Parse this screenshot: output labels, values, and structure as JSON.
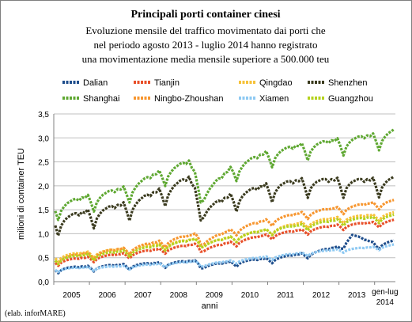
{
  "chart_data": {
    "type": "line",
    "title": "Principali porti container cinesi",
    "subtitle": [
      "Evoluzione mensile del traffico movimentato dai porti che",
      "nel periodo agosto 2013 - luglio 2014 hanno registrato",
      "una movimentazione media mensile superiore a 500.000 teu"
    ],
    "ylabel": "milioni di container TEU",
    "xlabel": "anni",
    "ylim": [
      0,
      3.5
    ],
    "yticks": [
      "0,0",
      "0,5",
      "1,0",
      "1,5",
      "2,0",
      "2,5",
      "3,0",
      "3,5"
    ],
    "xticks": [
      "2005",
      "2006",
      "2007",
      "2008",
      "2009",
      "2010",
      "2011",
      "2012",
      "2013"
    ],
    "xtick_last": [
      "gen-lug",
      "2014"
    ],
    "x_start": "2005-01",
    "x_end": "2014-07",
    "grid": true,
    "legend_position": "top",
    "credit": "(elab. inforMARE)",
    "series": [
      {
        "name": "Dalian",
        "color": "#1f4e8c",
        "dash": "dashed",
        "start": 0.25,
        "end": 0.8,
        "seasonal": 0.06,
        "keypoints": [
          [
            0,
            0.25
          ],
          [
            24,
            0.32
          ],
          [
            48,
            0.4
          ],
          [
            50,
            0.3
          ],
          [
            60,
            0.38
          ],
          [
            72,
            0.45
          ],
          [
            84,
            0.55
          ],
          [
            96,
            0.7
          ],
          [
            100,
            0.95
          ],
          [
            108,
            0.75
          ],
          [
            114,
            0.82
          ]
        ]
      },
      {
        "name": "Tianjin",
        "color": "#e8502a",
        "dash": "dashed",
        "start": 0.4,
        "end": 1.25,
        "seasonal": 0.06,
        "keypoints": [
          [
            0,
            0.4
          ],
          [
            24,
            0.55
          ],
          [
            48,
            0.75
          ],
          [
            50,
            0.65
          ],
          [
            60,
            0.8
          ],
          [
            72,
            0.95
          ],
          [
            84,
            1.05
          ],
          [
            96,
            1.15
          ],
          [
            108,
            1.2
          ],
          [
            114,
            1.25
          ]
        ]
      },
      {
        "name": "Qingdao",
        "color": "#f6c23a",
        "dash": "dashed",
        "start": 0.5,
        "end": 1.4,
        "seasonal": 0.07,
        "keypoints": [
          [
            0,
            0.5
          ],
          [
            24,
            0.65
          ],
          [
            48,
            0.85
          ],
          [
            50,
            0.75
          ],
          [
            60,
            0.9
          ],
          [
            72,
            1.05
          ],
          [
            84,
            1.2
          ],
          [
            96,
            1.3
          ],
          [
            108,
            1.35
          ],
          [
            114,
            1.4
          ]
        ]
      },
      {
        "name": "Shenzhen",
        "color": "#3b3b1f",
        "dash": "dashed",
        "start": 1.2,
        "end": 2.05,
        "seasonal": 0.2,
        "keypoints": [
          [
            0,
            1.2
          ],
          [
            24,
            1.5
          ],
          [
            36,
            1.8
          ],
          [
            45,
            2.05
          ],
          [
            50,
            1.4
          ],
          [
            60,
            1.7
          ],
          [
            72,
            1.9
          ],
          [
            84,
            2.0
          ],
          [
            96,
            2.0
          ],
          [
            108,
            2.0
          ],
          [
            114,
            2.05
          ]
        ]
      },
      {
        "name": "Shanghai",
        "color": "#5fa832",
        "dash": "dashed",
        "start": 1.5,
        "end": 3.05,
        "seasonal": 0.18,
        "keypoints": [
          [
            0,
            1.5
          ],
          [
            24,
            1.85
          ],
          [
            36,
            2.2
          ],
          [
            45,
            2.4
          ],
          [
            50,
            1.75
          ],
          [
            60,
            2.3
          ],
          [
            72,
            2.6
          ],
          [
            84,
            2.75
          ],
          [
            96,
            2.85
          ],
          [
            108,
            2.95
          ],
          [
            114,
            3.05
          ]
        ]
      },
      {
        "name": "Ningbo-Zhoushan",
        "color": "#f7962f",
        "dash": "dashed",
        "start": 0.45,
        "end": 1.65,
        "seasonal": 0.08,
        "keypoints": [
          [
            0,
            0.45
          ],
          [
            24,
            0.65
          ],
          [
            48,
            0.95
          ],
          [
            50,
            0.8
          ],
          [
            60,
            1.05
          ],
          [
            72,
            1.25
          ],
          [
            84,
            1.4
          ],
          [
            96,
            1.5
          ],
          [
            108,
            1.6
          ],
          [
            114,
            1.65
          ]
        ]
      },
      {
        "name": "Xiamen",
        "color": "#8ec9f2",
        "dash": "dashed",
        "start": 0.25,
        "end": 0.75,
        "seasonal": 0.04,
        "keypoints": [
          [
            0,
            0.25
          ],
          [
            24,
            0.3
          ],
          [
            48,
            0.4
          ],
          [
            50,
            0.33
          ],
          [
            60,
            0.42
          ],
          [
            72,
            0.5
          ],
          [
            84,
            0.58
          ],
          [
            96,
            0.65
          ],
          [
            108,
            0.7
          ],
          [
            114,
            0.75
          ]
        ]
      },
      {
        "name": "Guangzhou",
        "color": "#b5d21e",
        "dash": "dashed",
        "start": 0.45,
        "end": 1.35,
        "seasonal": 0.07,
        "keypoints": [
          [
            0,
            0.45
          ],
          [
            24,
            0.6
          ],
          [
            48,
            0.85
          ],
          [
            50,
            0.75
          ],
          [
            60,
            0.9
          ],
          [
            72,
            1.05
          ],
          [
            84,
            1.15
          ],
          [
            96,
            1.25
          ],
          [
            108,
            1.3
          ],
          [
            114,
            1.35
          ]
        ]
      }
    ]
  }
}
